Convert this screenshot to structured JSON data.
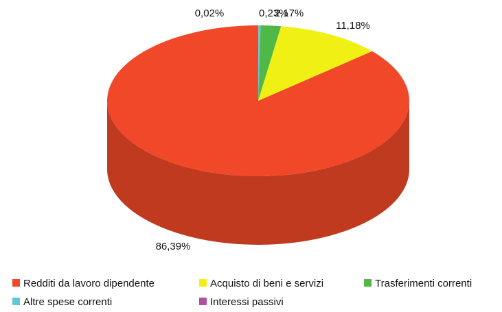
{
  "chart_data": {
    "type": "pie",
    "categories": [
      "Redditi da lavoro dipendente",
      "Acquisto di beni e servizi",
      "Trasferimenti correnti",
      "Altre spese correnti",
      "Interessi passivi"
    ],
    "values": [
      86.39,
      11.18,
      2.17,
      0.23,
      0.02
    ],
    "value_labels": [
      "86,39%",
      "11,18%",
      "2,17%",
      "0,23%",
      "0,02%"
    ],
    "colors": [
      "#f04828",
      "#f0f014",
      "#50b848",
      "#60c8d8",
      "#b050a0"
    ],
    "legend": "bottom"
  }
}
